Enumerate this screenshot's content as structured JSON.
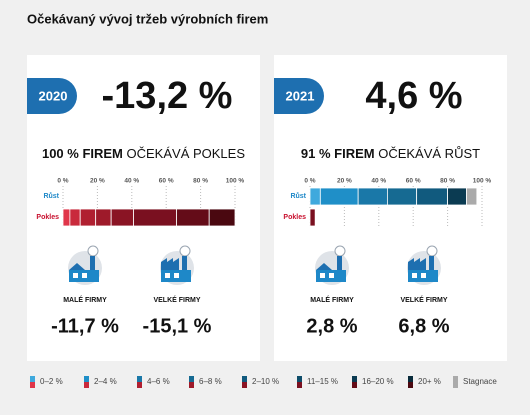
{
  "title": "Očekávaný vývoj tržeb výrobních firem",
  "panels": [
    {
      "year": "2020",
      "headline": "-13,2 %",
      "subtitle_bold": "100 % FIREM",
      "subtitle_rest": "OČEKÁVÁ POKLES",
      "xlim": [
        0,
        100
      ],
      "xticks": [
        {
          "value": 0,
          "label": "0 %"
        },
        {
          "value": 20,
          "label": "20 %"
        },
        {
          "value": 40,
          "label": "40 %"
        },
        {
          "value": 60,
          "label": "60 %"
        },
        {
          "value": 80,
          "label": "80 %"
        },
        {
          "value": 100,
          "label": "100 %"
        }
      ],
      "rows": [
        {
          "label": "Růst",
          "label_color": "#1e88c8",
          "values": [],
          "colors": []
        },
        {
          "label": "Pokles",
          "label_color": "#c8102e",
          "values": [
            4,
            6,
            9,
            9,
            13,
            25,
            19,
            15
          ],
          "colors": [
            "#e0364a",
            "#c92a3c",
            "#b01f30",
            "#9e1a2a",
            "#8a1424",
            "#7a1020",
            "#640c18",
            "#4a0810"
          ]
        }
      ],
      "firms": [
        {
          "label": "MALÉ FIRMY",
          "value": "-11,7 %"
        },
        {
          "label": "VELKÉ FIRMY",
          "value": "-15,1 %"
        }
      ]
    },
    {
      "year": "2021",
      "headline": "4,6 %",
      "subtitle_bold": "91 % FIREM",
      "subtitle_rest": "OČEKÁVÁ RŮST",
      "xlim": [
        0,
        100
      ],
      "xticks": [
        {
          "value": 0,
          "label": "0 %"
        },
        {
          "value": 20,
          "label": "20 %"
        },
        {
          "value": 40,
          "label": "40 %"
        },
        {
          "value": 60,
          "label": "60 %"
        },
        {
          "value": 80,
          "label": "80 %"
        },
        {
          "value": 100,
          "label": "100 %"
        }
      ],
      "rows": [
        {
          "label": "Růst",
          "label_color": "#1e88c8",
          "values": [
            6,
            22,
            17,
            17,
            18,
            11,
            6
          ],
          "colors": [
            "#3fa9dd",
            "#1f8fc8",
            "#1a78a8",
            "#166a92",
            "#115a7e",
            "#0b3b52",
            "#aaaaaa"
          ]
        },
        {
          "label": "Pokles",
          "label_color": "#c8102e",
          "values": [
            3
          ],
          "colors": [
            "#7a1020"
          ]
        }
      ],
      "firms": [
        {
          "label": "MALÉ FIRMY",
          "value": "2,8 %"
        },
        {
          "label": "VELKÉ FIRMY",
          "value": "6,8 %"
        }
      ]
    }
  ],
  "legend": [
    {
      "label": "0–2 %",
      "colors": [
        "#3fa9dd",
        "#e0364a"
      ]
    },
    {
      "label": "2–4 %",
      "colors": [
        "#1f8fc8",
        "#c92a3c"
      ]
    },
    {
      "label": "4–6 %",
      "colors": [
        "#1a78a8",
        "#b01f30"
      ]
    },
    {
      "label": "6–8 %",
      "colors": [
        "#166a92",
        "#9e1a2a"
      ]
    },
    {
      "label": "2–10 %",
      "colors": [
        "#115a7e",
        "#8a1424"
      ]
    },
    {
      "label": "11–15 %",
      "colors": [
        "#0e4d6a",
        "#7a1020"
      ]
    },
    {
      "label": "16–20 %",
      "colors": [
        "#0b3b52",
        "#640c18"
      ]
    },
    {
      "label": "20+ %",
      "colors": [
        "#082a3a",
        "#4a0810"
      ]
    },
    {
      "label": "Stagnace",
      "colors": [
        "#aaaaaa"
      ]
    }
  ]
}
